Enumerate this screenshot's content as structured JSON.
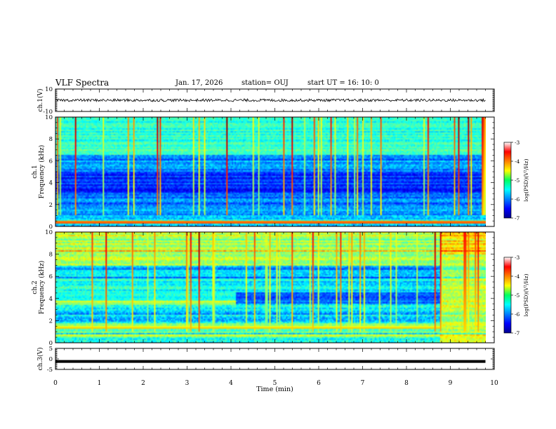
{
  "header": {
    "title": "VLF Spectra",
    "date": "Jan. 17, 2026",
    "station": "station= OUJ",
    "start": "start  UT =   16: 10: 0"
  },
  "chart_data": [
    {
      "type": "line",
      "name": "ch1-waveform",
      "ylabel": "ch.1(V)",
      "ylim": [
        -10,
        10
      ],
      "yticks": [
        "10",
        "-10"
      ],
      "xlim": [
        0,
        9.8
      ],
      "description_values": {
        "baseline_v": 0.0,
        "amplitude_v": 1.2
      }
    },
    {
      "type": "heatmap",
      "name": "ch1-spectrogram",
      "ylabel_top": "ch.1",
      "ylabel": "Frequency (kHz)",
      "ylim": [
        0,
        10
      ],
      "yticks": [
        "0",
        "2",
        "4",
        "6",
        "8",
        "10"
      ],
      "xlim": [
        0,
        9.8
      ],
      "colorbar": {
        "label": "log(PSD)(V²/Hz)",
        "range": [
          -7,
          -3
        ],
        "ticks": [
          "-3",
          "-4",
          "-5",
          "-6",
          "-7"
        ]
      }
    },
    {
      "type": "heatmap",
      "name": "ch2-spectrogram",
      "ylabel_top": "ch.2",
      "ylabel": "Frequency (kHz)",
      "ylim": [
        0,
        10
      ],
      "yticks": [
        "0",
        "2",
        "4",
        "6",
        "8",
        "10"
      ],
      "xlim": [
        0,
        9.8
      ],
      "regime_change_min": 8.75,
      "band_3_5khz_end_min": 4.1,
      "colorbar": {
        "label": "log(PSD)(V²/Hz)",
        "range": [
          -7,
          -3
        ],
        "ticks": [
          "-3",
          "-4",
          "-5",
          "-6",
          "-7"
        ]
      }
    },
    {
      "type": "line",
      "name": "ch3-waveform",
      "ylabel": "ch.3(V)",
      "ylim": [
        -5,
        5
      ],
      "yticks": [
        "5",
        "0",
        "-5"
      ],
      "xlim": [
        0,
        9.8
      ],
      "description_values": {
        "constant_v": -1.2
      }
    }
  ],
  "xaxis": {
    "label": "Time (min)",
    "ticks": [
      "0",
      "1",
      "2",
      "3",
      "4",
      "5",
      "6",
      "7",
      "8",
      "9",
      "10"
    ],
    "range": [
      0,
      10
    ]
  }
}
